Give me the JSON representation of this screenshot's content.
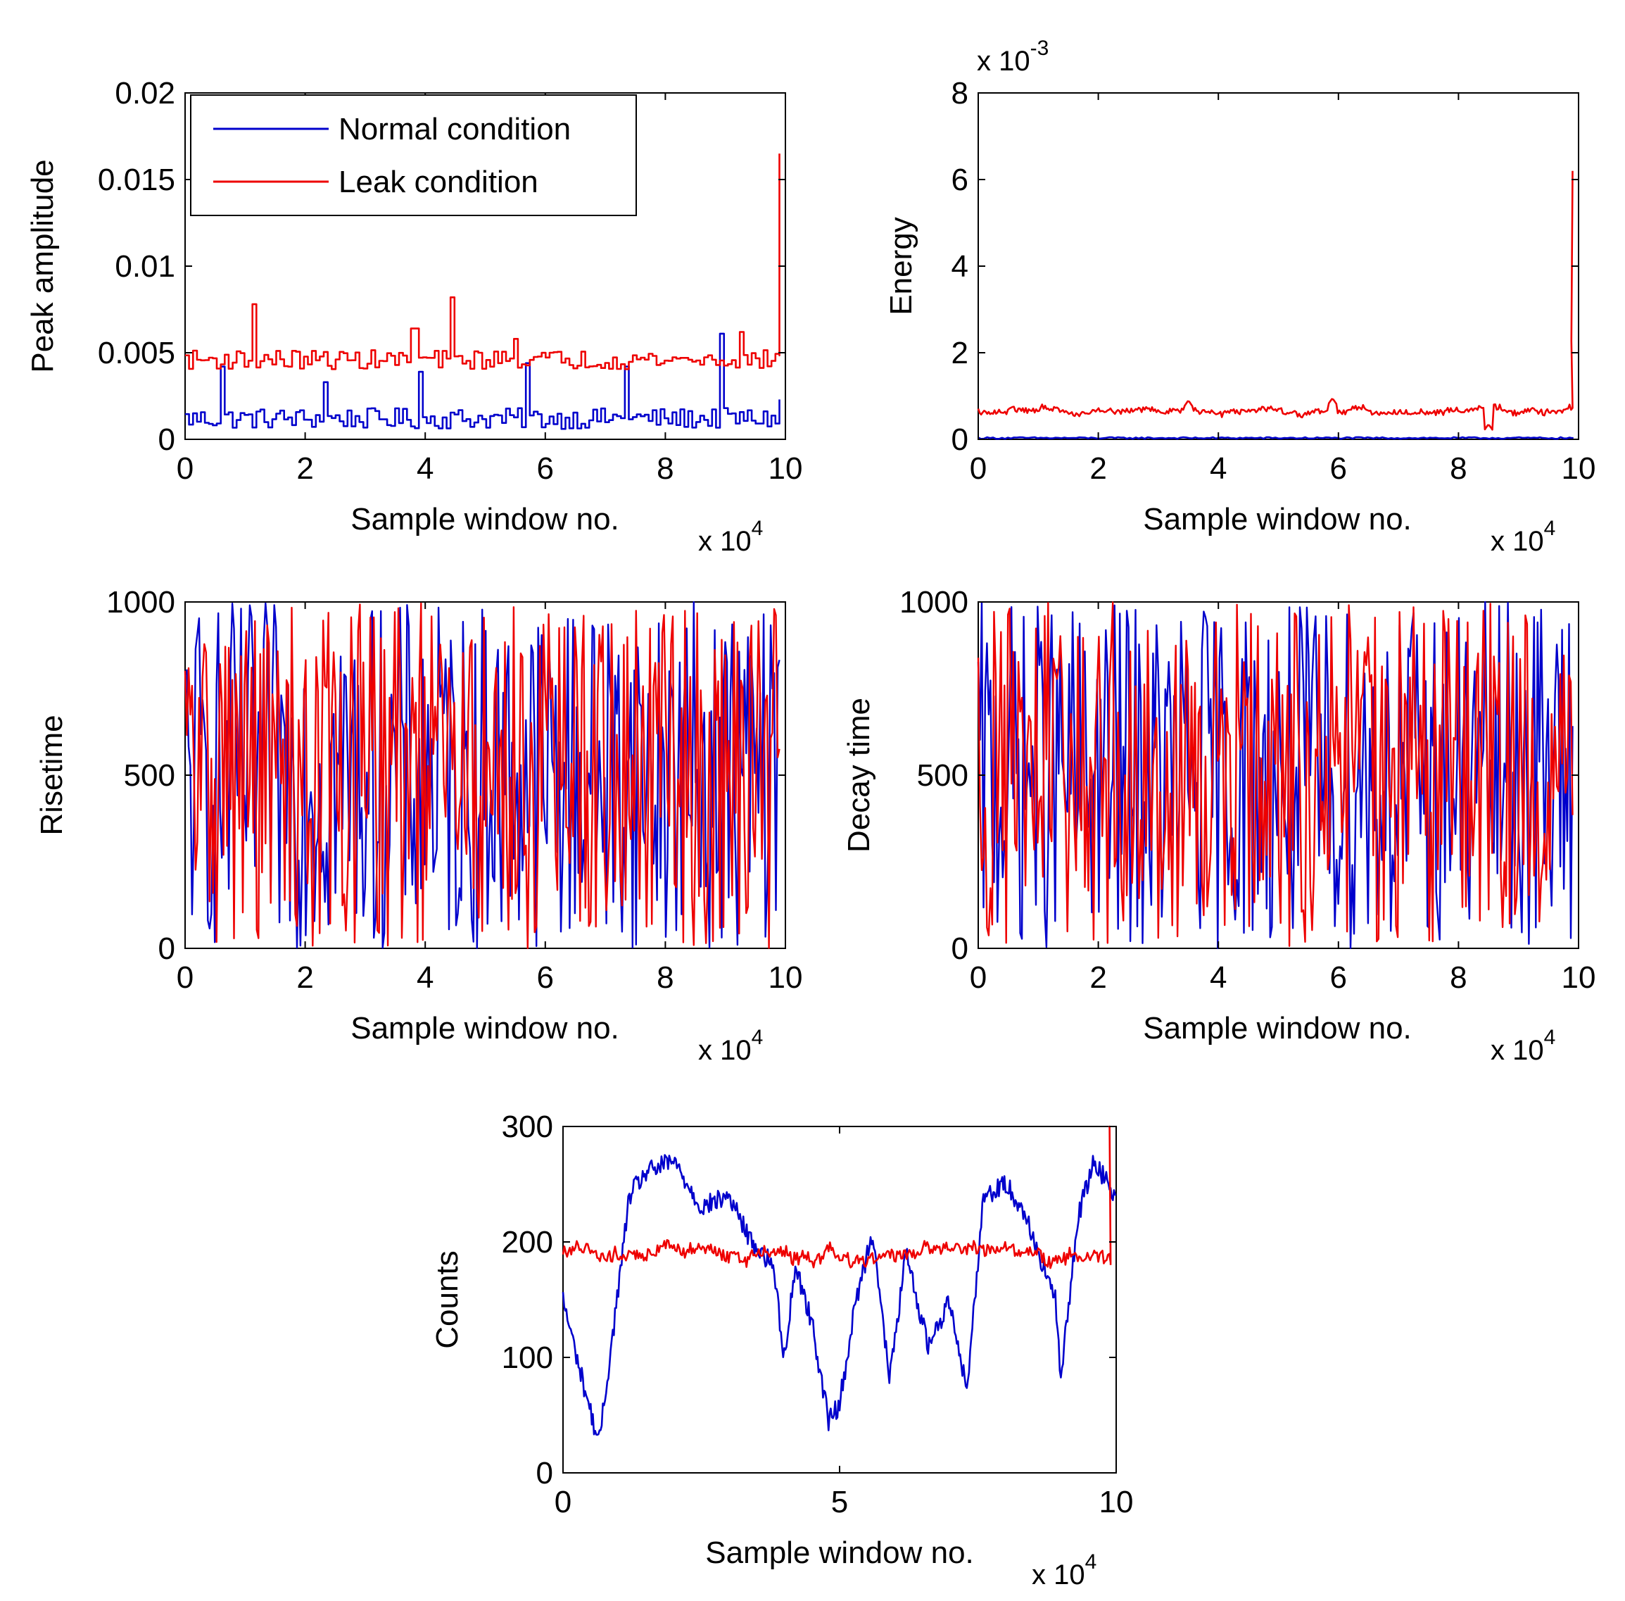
{
  "legend": {
    "items": [
      {
        "label": "Normal condition",
        "color": "#0000cc"
      },
      {
        "label": "Leak condition",
        "color": "#ee0000"
      }
    ]
  },
  "chart_data": [
    {
      "id": "peak",
      "type": "line",
      "xlabel": "Sample window no.",
      "ylabel": "Peak amplitude",
      "x_multiplier_label": "x 10",
      "x_multiplier_exp": "4",
      "xlim": [
        0,
        10
      ],
      "ylim": [
        0,
        0.02
      ],
      "xticks": [
        0,
        2,
        4,
        6,
        8,
        10
      ],
      "xtick_labels": [
        "0",
        "2",
        "4",
        "6",
        "8",
        "10"
      ],
      "yticks": [
        0,
        0.005,
        0.01,
        0.015,
        0.02
      ],
      "ytick_labels": [
        "0",
        "0.005",
        "0.01",
        "0.015",
        "0.02"
      ],
      "legend_position": "top-left",
      "series": [
        {
          "name": "Normal condition",
          "color": "#0000cc",
          "pattern": "step",
          "base": 0.0012,
          "noise": 0.0012,
          "spikes": [
            [
              0.6,
              0.0042
            ],
            [
              2.3,
              0.0033
            ],
            [
              3.9,
              0.0039
            ],
            [
              5.7,
              0.0044
            ],
            [
              7.3,
              0.0042
            ],
            [
              8.9,
              0.0061
            ]
          ],
          "end": 0.0023
        },
        {
          "name": "Leak condition",
          "color": "#ee0000",
          "pattern": "step",
          "base": 0.0046,
          "noise": 0.0011,
          "spikes": [
            [
              1.1,
              0.0078
            ],
            [
              3.8,
              0.0064
            ],
            [
              4.4,
              0.0082
            ],
            [
              5.5,
              0.0058
            ],
            [
              9.25,
              0.0062
            ]
          ],
          "end": 0.0165
        }
      ]
    },
    {
      "id": "energy",
      "type": "line",
      "xlabel": "Sample window no.",
      "ylabel": "Energy",
      "x_multiplier_label": "x 10",
      "x_multiplier_exp": "4",
      "y_multiplier_label": "x 10",
      "y_multiplier_exp": "-3",
      "xlim": [
        0,
        10
      ],
      "ylim": [
        0,
        8
      ],
      "xticks": [
        0,
        2,
        4,
        6,
        8,
        10
      ],
      "xtick_labels": [
        "0",
        "2",
        "4",
        "6",
        "8",
        "10"
      ],
      "yticks": [
        0,
        2,
        4,
        6,
        8
      ],
      "ytick_labels": [
        "0",
        "2",
        "4",
        "6",
        "8"
      ],
      "series": [
        {
          "name": "Normal condition",
          "color": "#0000cc",
          "pattern": "flat",
          "base": 0.03,
          "noise": 0.04,
          "end": 0.05
        },
        {
          "name": "Leak condition",
          "color": "#ee0000",
          "pattern": "walk",
          "base": 0.65,
          "noise": 0.12,
          "spikes": [
            [
              3.5,
              0.9
            ],
            [
              5.9,
              0.95
            ],
            [
              8.5,
              0.35
            ]
          ],
          "end": 6.2
        }
      ]
    },
    {
      "id": "risetime",
      "type": "line",
      "xlabel": "Sample window no.",
      "ylabel": "Risetime",
      "x_multiplier_label": "x 10",
      "x_multiplier_exp": "4",
      "xlim": [
        0,
        10
      ],
      "ylim": [
        0,
        1000
      ],
      "xticks": [
        0,
        2,
        4,
        6,
        8,
        10
      ],
      "xtick_labels": [
        "0",
        "2",
        "4",
        "6",
        "8",
        "10"
      ],
      "yticks": [
        0,
        500,
        1000
      ],
      "ytick_labels": [
        "0",
        "500",
        "1000"
      ],
      "series": [
        {
          "name": "Normal condition",
          "color": "#0000cc",
          "pattern": "noise",
          "min": 0,
          "max": 1000
        },
        {
          "name": "Leak condition",
          "color": "#ee0000",
          "pattern": "noise",
          "min": 0,
          "max": 1000
        }
      ]
    },
    {
      "id": "decay",
      "type": "line",
      "xlabel": "Sample window no.",
      "ylabel": "Decay time",
      "x_multiplier_label": "x 10",
      "x_multiplier_exp": "4",
      "xlim": [
        0,
        10
      ],
      "ylim": [
        0,
        1000
      ],
      "xticks": [
        0,
        2,
        4,
        6,
        8,
        10
      ],
      "xtick_labels": [
        "0",
        "2",
        "4",
        "6",
        "8",
        "10"
      ],
      "yticks": [
        0,
        500,
        1000
      ],
      "ytick_labels": [
        "0",
        "500",
        "1000"
      ],
      "series": [
        {
          "name": "Normal condition",
          "color": "#0000cc",
          "pattern": "noise",
          "min": 0,
          "max": 1000
        },
        {
          "name": "Leak condition",
          "color": "#ee0000",
          "pattern": "noise",
          "min": 0,
          "max": 1000
        }
      ]
    },
    {
      "id": "counts",
      "type": "line",
      "xlabel": "Sample window no.",
      "ylabel": "Counts",
      "x_multiplier_label": "x 10",
      "x_multiplier_exp": "4",
      "xlim": [
        0,
        10
      ],
      "ylim": [
        0,
        300
      ],
      "xticks": [
        0,
        5,
        10
      ],
      "xtick_labels": [
        "0",
        "5",
        "10"
      ],
      "yticks": [
        0,
        100,
        200,
        300
      ],
      "ytick_labels": [
        "0",
        "100",
        "200",
        "300"
      ],
      "series": [
        {
          "name": "Normal condition",
          "color": "#0000cc",
          "pattern": "keyframes",
          "keyframes": [
            [
              0,
              150
            ],
            [
              0.3,
              90
            ],
            [
              0.65,
              25
            ],
            [
              0.9,
              120
            ],
            [
              1.2,
              240
            ],
            [
              1.5,
              260
            ],
            [
              2.0,
              270
            ],
            [
              2.5,
              230
            ],
            [
              3.0,
              240
            ],
            [
              3.4,
              200
            ],
            [
              3.8,
              180
            ],
            [
              4.0,
              100
            ],
            [
              4.2,
              180
            ],
            [
              4.5,
              130
            ],
            [
              4.8,
              45
            ],
            [
              5.0,
              60
            ],
            [
              5.3,
              150
            ],
            [
              5.6,
              210
            ],
            [
              5.9,
              80
            ],
            [
              6.2,
              190
            ],
            [
              6.6,
              110
            ],
            [
              7.0,
              150
            ],
            [
              7.3,
              70
            ],
            [
              7.6,
              240
            ],
            [
              8.0,
              250
            ],
            [
              8.3,
              230
            ],
            [
              8.6,
              190
            ],
            [
              8.9,
              150
            ],
            [
              9.0,
              80
            ],
            [
              9.3,
              220
            ],
            [
              9.6,
              270
            ],
            [
              10.0,
              240
            ]
          ],
          "noise": 18
        },
        {
          "name": "Leak condition",
          "color": "#ee0000",
          "pattern": "walk",
          "base": 190,
          "noise": 10,
          "end": 180
        }
      ]
    }
  ]
}
